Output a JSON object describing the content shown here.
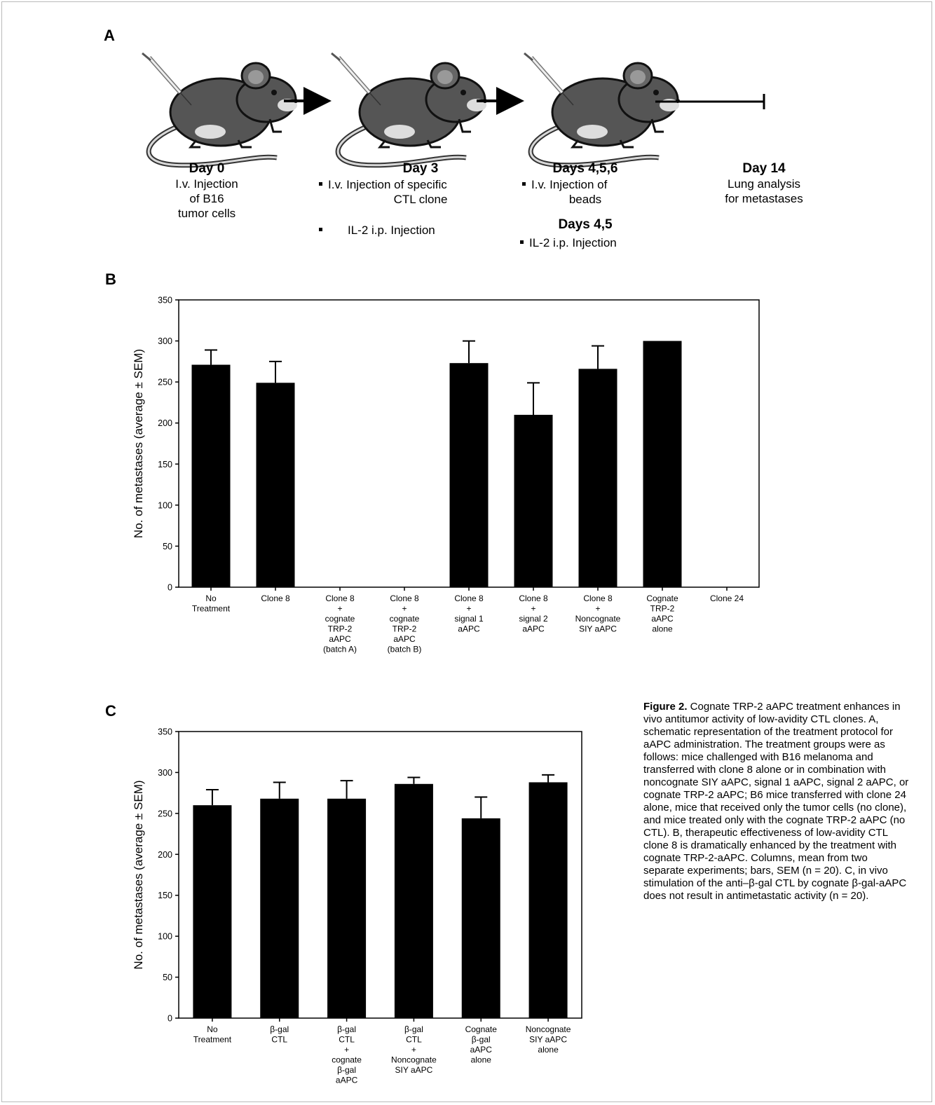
{
  "panels": {
    "a": "A",
    "b": "B",
    "c": "C"
  },
  "schematic": {
    "steps": [
      {
        "day": "Day 0",
        "lines": [
          "I.v. Injection",
          "of B16",
          "tumor cells"
        ]
      },
      {
        "day": "Day 3",
        "bullets": [
          "I.v. Injection of specific",
          "CTL clone"
        ],
        "bullet2": "IL-2 i.p. Injection"
      },
      {
        "day": "Days 4,5,6",
        "bullets": [
          "I.v. Injection of",
          "beads"
        ],
        "day2": "Days 4,5",
        "bullet2": "IL-2 i.p. Injection"
      },
      {
        "day": "Day 14",
        "lines": [
          "Lung analysis",
          "for metastases"
        ]
      }
    ]
  },
  "chart_data": [
    {
      "type": "bar",
      "panel": "B",
      "ylabel": "No. of metastases (average ± SEM)",
      "ylim": [
        0,
        350
      ],
      "yticks": [
        0,
        50,
        100,
        150,
        200,
        250,
        300,
        350
      ],
      "categories": [
        [
          "No",
          "Treatment"
        ],
        [
          "Clone 8"
        ],
        [
          "Clone 8",
          "+",
          "cognate",
          "TRP-2",
          "aAPC",
          "(batch A)"
        ],
        [
          "Clone 8",
          "+",
          "cognate",
          "TRP-2",
          "aAPC",
          "(batch B)"
        ],
        [
          "Clone 8",
          "+",
          "signal 1",
          "aAPC"
        ],
        [
          "Clone 8",
          "+",
          "signal 2",
          "aAPC"
        ],
        [
          "Clone 8",
          "+",
          "Noncognate",
          "SIY aAPC"
        ],
        [
          "Cognate",
          "TRP-2",
          "aAPC",
          "alone"
        ],
        [
          "Clone 24"
        ]
      ],
      "values": [
        271,
        249,
        0,
        0,
        273,
        210,
        266,
        300,
        0
      ],
      "errors": [
        18,
        26,
        0,
        0,
        27,
        39,
        28,
        0,
        0
      ],
      "grid": false,
      "legend": "none"
    },
    {
      "type": "bar",
      "panel": "C",
      "ylabel": "No. of metastases (average ± SEM)",
      "ylim": [
        0,
        350
      ],
      "yticks": [
        0,
        50,
        100,
        150,
        200,
        250,
        300,
        350
      ],
      "categories": [
        [
          "No",
          "Treatment"
        ],
        [
          "β-gal",
          "CTL"
        ],
        [
          "β-gal",
          "CTL",
          "+",
          "cognate",
          "β-gal",
          "aAPC"
        ],
        [
          "β-gal",
          "CTL",
          "+",
          "Noncognate",
          "SIY aAPC"
        ],
        [
          "Cognate",
          "β-gal",
          "aAPC",
          "alone"
        ],
        [
          "Noncognate",
          "SIY aAPC",
          "alone"
        ]
      ],
      "values": [
        260,
        268,
        268,
        286,
        244,
        288
      ],
      "errors": [
        19,
        20,
        22,
        8,
        26,
        9
      ],
      "grid": false,
      "legend": "none"
    }
  ],
  "caption": {
    "label": "Figure 2.",
    "text": " Cognate TRP-2 aAPC treatment enhances in vivo antitumor activity of low-avidity CTL clones. A, schematic representation of the treatment protocol for aAPC administration. The treatment groups were as follows: mice challenged with B16 melanoma and transferred with clone 8 alone or in combination with noncognate SIY aAPC, signal 1 aAPC, signal 2 aAPC, or cognate TRP-2 aAPC; B6 mice transferred with clone 24 alone, mice that received only the tumor cells (no clone), and mice treated only with the cognate TRP-2 aAPC (no CTL). B, therapeutic effectiveness of low-avidity CTL clone 8 is dramatically enhanced by the treatment with cognate TRP-2-aAPC. Columns, mean from two separate experiments; bars, SEM (n = 20). C, in vivo stimulation of the anti–β-gal CTL by cognate β-gal-aAPC does not result in antimetastatic activity (n = 20)."
  }
}
